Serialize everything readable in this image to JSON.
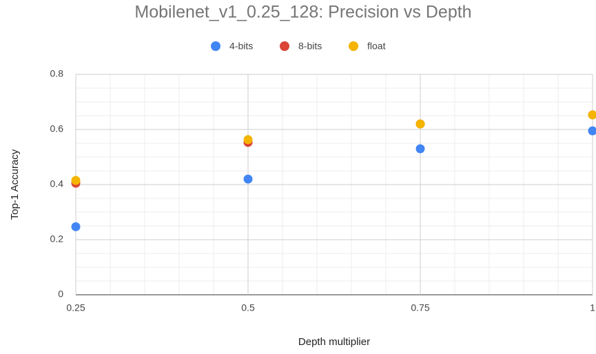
{
  "chart_data": {
    "type": "scatter",
    "title": "Mobilenet_v1_0.25_128: Precision vs Depth",
    "x_label": "Depth multiplier",
    "y_label": "Top-1 Accuracy",
    "x": [
      0.25,
      0.5,
      0.75,
      1
    ],
    "series": [
      {
        "name": "4-bits",
        "color": "#4285f4",
        "values": [
          0.247,
          0.42,
          0.53,
          0.595
        ]
      },
      {
        "name": "8-bits",
        "color": "#db4437",
        "values": [
          0.405,
          0.553,
          0.62,
          0.653
        ]
      },
      {
        "name": "float",
        "color": "#f4b400",
        "values": [
          0.415,
          0.563,
          0.62,
          0.653
        ]
      }
    ],
    "xlim": [
      0.25,
      1
    ],
    "xticks": [
      0.25,
      0.5,
      0.75,
      1
    ],
    "ylim": [
      0,
      0.8
    ],
    "yticks": [
      0,
      0.2,
      0.4,
      0.6,
      0.8
    ],
    "grid": true,
    "legend": "top"
  }
}
